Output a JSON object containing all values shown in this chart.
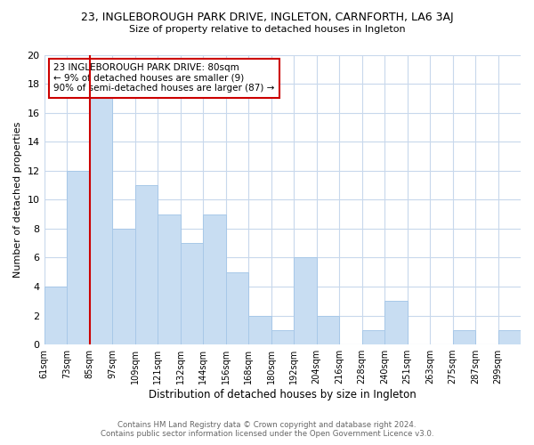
{
  "title": "23, INGLEBOROUGH PARK DRIVE, INGLETON, CARNFORTH, LA6 3AJ",
  "subtitle": "Size of property relative to detached houses in Ingleton",
  "xlabel": "Distribution of detached houses by size in Ingleton",
  "ylabel": "Number of detached properties",
  "bar_color": "#c8ddf2",
  "bar_edge_color": "#a8c8e8",
  "background_color": "#ffffff",
  "grid_color": "#c8d8ec",
  "bin_labels": [
    "61sqm",
    "73sqm",
    "85sqm",
    "97sqm",
    "109sqm",
    "121sqm",
    "132sqm",
    "144sqm",
    "156sqm",
    "168sqm",
    "180sqm",
    "192sqm",
    "204sqm",
    "216sqm",
    "228sqm",
    "240sqm",
    "251sqm",
    "263sqm",
    "275sqm",
    "287sqm",
    "299sqm"
  ],
  "bar_heights": [
    4,
    12,
    17,
    8,
    11,
    9,
    7,
    9,
    5,
    2,
    1,
    6,
    2,
    0,
    1,
    3,
    0,
    0,
    1,
    0,
    1
  ],
  "vline_x_index": 2,
  "vline_color": "#cc0000",
  "ylim": [
    0,
    20
  ],
  "annotation_text": "23 INGLEBOROUGH PARK DRIVE: 80sqm\n← 9% of detached houses are smaller (9)\n90% of semi-detached houses are larger (87) →",
  "annotation_box_color": "#ffffff",
  "annotation_box_edge": "#cc0000",
  "footer_line1": "Contains HM Land Registry data © Crown copyright and database right 2024.",
  "footer_line2": "Contains public sector information licensed under the Open Government Licence v3.0."
}
